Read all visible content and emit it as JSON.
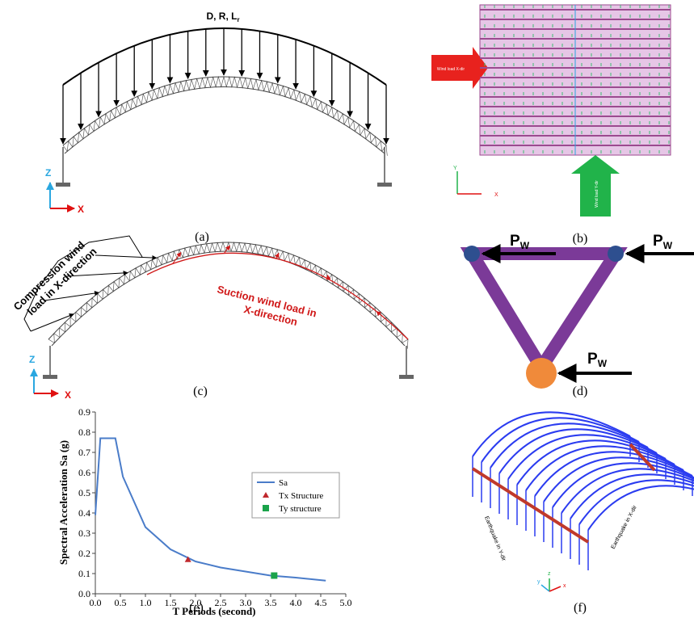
{
  "figure": {
    "a": {
      "caption": "(a)",
      "loads": "D, R, L",
      "loads_subscript": "r",
      "axis_z": "Z",
      "axis_x": "X"
    },
    "b": {
      "caption": "(b)",
      "wind_x": "Wind load X-dir",
      "wind_y": "Wind load Y-dir",
      "axis_y": "Y",
      "axis_x": "X"
    },
    "c": {
      "caption": "(c)",
      "compression": [
        "Compression wind",
        "load in X-direction"
      ],
      "suction": [
        "Suction wind load in",
        "X-direction"
      ],
      "axis_z": "Z",
      "axis_x": "X"
    },
    "d": {
      "caption": "(d)",
      "force": "P",
      "force_subscript": "W"
    },
    "e": {
      "caption": "(e)"
    },
    "f": {
      "caption": "(f)",
      "quake_y": "Earthquake in Y-dir",
      "quake_x": "Earthquake in X-dir",
      "axis_y": "y",
      "axis_z": "z",
      "axis_x": "x"
    }
  },
  "chart_data": {
    "type": "line",
    "xlabel": "T Periods (second)",
    "ylabel": "Spectral Acceleration Sa (g)",
    "xlim": [
      0,
      5
    ],
    "ylim": [
      0,
      0.9
    ],
    "xticks": [
      {
        "value": 0,
        "label": "0.0"
      },
      {
        "value": 0.5,
        "label": "0.5"
      },
      {
        "value": 1,
        "label": "1.0"
      },
      {
        "value": 1.5,
        "label": "1.5"
      },
      {
        "value": 2,
        "label": "2.0"
      },
      {
        "value": 2.5,
        "label": "2.5"
      },
      {
        "value": 3,
        "label": "3.0"
      },
      {
        "value": 3.5,
        "label": "3.5"
      },
      {
        "value": 4,
        "label": "4.0"
      },
      {
        "value": 4.5,
        "label": "4.5"
      },
      {
        "value": 5,
        "label": "5.0"
      }
    ],
    "yticks": [
      {
        "value": 0,
        "label": "0.0"
      },
      {
        "value": 0.1,
        "label": "0.1"
      },
      {
        "value": 0.2,
        "label": "0.2"
      },
      {
        "value": 0.3,
        "label": "0.3"
      },
      {
        "value": 0.4,
        "label": "0.4"
      },
      {
        "value": 0.5,
        "label": "0.5"
      },
      {
        "value": 0.6,
        "label": "0.6"
      },
      {
        "value": 0.7,
        "label": "0.7"
      },
      {
        "value": 0.8,
        "label": "0.8"
      },
      {
        "value": 0.9,
        "label": "0.9"
      }
    ],
    "grid": false,
    "legend": "right",
    "series": [
      {
        "name": "Sa",
        "color": "#4a7cc9",
        "marker": "line",
        "x": [
          0,
          0.1,
          0.4,
          0.55,
          1.0,
          1.5,
          2.0,
          2.5,
          3.0,
          3.5,
          4.0,
          4.6
        ],
        "values": [
          0.39,
          0.77,
          0.77,
          0.58,
          0.33,
          0.22,
          0.16,
          0.13,
          0.11,
          0.09,
          0.08,
          0.065
        ]
      },
      {
        "name": "Tx Structure",
        "color": "#c0282d",
        "marker": "triangle",
        "x": [
          1.85
        ],
        "values": [
          0.17
        ]
      },
      {
        "name": "Ty structure",
        "color": "#1aa34a",
        "marker": "square",
        "x": [
          3.57
        ],
        "values": [
          0.09
        ]
      }
    ]
  }
}
